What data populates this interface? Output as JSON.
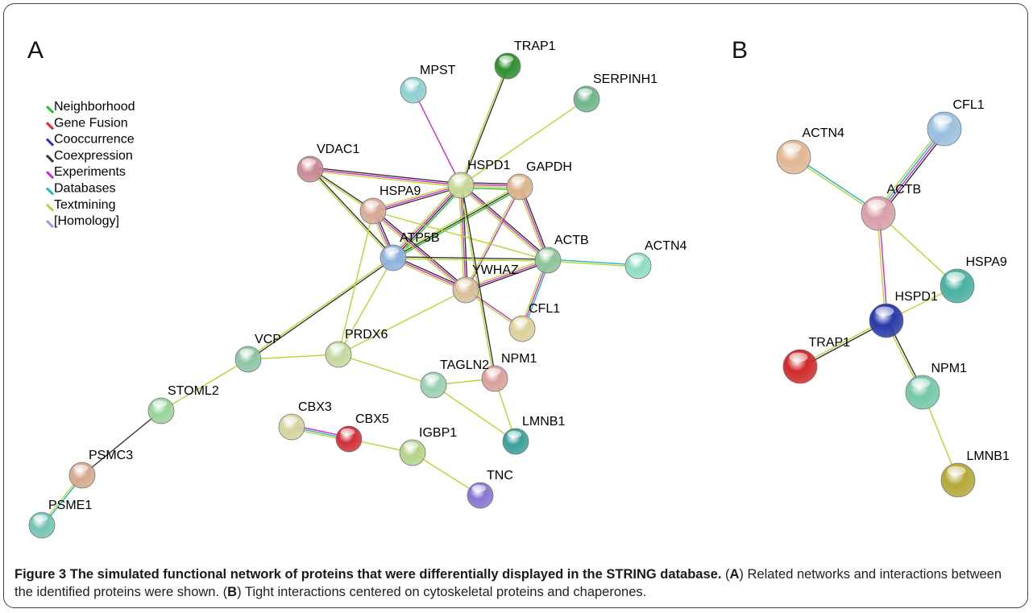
{
  "panel_a": {
    "label": "A",
    "nodes": [
      {
        "label": "TRAP1",
        "color": "#2f8f2f"
      },
      {
        "label": "MPST",
        "color": "#8fd0d0"
      },
      {
        "label": "SERPINH1",
        "color": "#6fb58a"
      },
      {
        "label": "VDAC1",
        "color": "#c98a94"
      },
      {
        "label": "HSPD1",
        "color": "#c9d99a"
      },
      {
        "label": "GAPDH",
        "color": "#d9b48c"
      },
      {
        "label": "HSPA9",
        "color": "#d9aa98"
      },
      {
        "label": "ATP5B",
        "color": "#8fb4dc"
      },
      {
        "label": "ACTB",
        "color": "#8fc49a"
      },
      {
        "label": "ACTN4",
        "color": "#8fdcc0"
      },
      {
        "label": "YWHAZ",
        "color": "#d9c09a"
      },
      {
        "label": "CFL1",
        "color": "#dcd09a"
      },
      {
        "label": "VCP",
        "color": "#8fc4a4"
      },
      {
        "label": "PRDX6",
        "color": "#c4d9a0"
      },
      {
        "label": "NPM1",
        "color": "#d9a09a"
      },
      {
        "label": "TAGLN2",
        "color": "#9ad0b4"
      },
      {
        "label": "STOML2",
        "color": "#9ad49a"
      },
      {
        "label": "CBX3",
        "color": "#d4d4a0"
      },
      {
        "label": "CBX5",
        "color": "#d0303a"
      },
      {
        "label": "IGBP1",
        "color": "#b4d48a"
      },
      {
        "label": "LMNB1",
        "color": "#3aa09a"
      },
      {
        "label": "PSMC3",
        "color": "#d4aa8f"
      },
      {
        "label": "TNC",
        "color": "#8a74d0"
      },
      {
        "label": "PSME1",
        "color": "#74c4b4"
      }
    ]
  },
  "panel_b": {
    "label": "B",
    "nodes": [
      {
        "label": "ACTN4",
        "color": "#e0b894"
      },
      {
        "label": "CFL1",
        "color": "#9ac0e0"
      },
      {
        "label": "ACTB",
        "color": "#d8a0a8"
      },
      {
        "label": "HSPA9",
        "color": "#4ab0a0"
      },
      {
        "label": "HSPD1",
        "color": "#2a3aa8"
      },
      {
        "label": "TRAP1",
        "color": "#d02a2a"
      },
      {
        "label": "NPM1",
        "color": "#74c8a8"
      },
      {
        "label": "LMNB1",
        "color": "#b4a83a"
      }
    ]
  },
  "legend": {
    "items": [
      {
        "label": "Neighborhood",
        "color": "#1fc22a"
      },
      {
        "label": "Gene Fusion",
        "color": "#e8262a"
      },
      {
        "label": "Cooccurrence",
        "color": "#2130d4"
      },
      {
        "label": "Coexpression",
        "color": "#333333"
      },
      {
        "label": "Experiments",
        "color": "#d42ad2"
      },
      {
        "label": "Databases",
        "color": "#22b4cc"
      },
      {
        "label": "Textmining",
        "color": "#b4d832"
      },
      {
        "label": "[Homology]",
        "color": "#9a9ae8"
      }
    ]
  },
  "caption": {
    "segments": [
      {
        "text": "Figure 3 The simulated functional network of proteins that were differentially displayed in the STRING database.",
        "bold": true
      },
      {
        "text": " (",
        "bold": false
      },
      {
        "text": "A",
        "bold": true
      },
      {
        "text": ") Related networks and interactions between the identified proteins were shown. (",
        "bold": false
      },
      {
        "text": "B",
        "bold": true
      },
      {
        "text": ") Tight interactions centered on cytoskeletal proteins and chaperones.",
        "bold": false
      }
    ]
  }
}
